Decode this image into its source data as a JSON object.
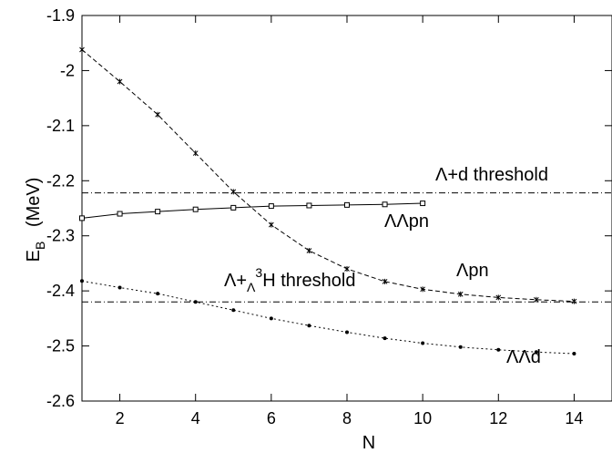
{
  "chart_data": {
    "type": "line",
    "xlabel": "N",
    "ylabel": "E",
    "ylabel_sub": "B",
    "ylabel_unit": "(MeV)",
    "xlim": [
      1,
      15
    ],
    "ylim": [
      -2.6,
      -1.9
    ],
    "xticks": [
      2,
      4,
      6,
      8,
      10,
      12,
      14
    ],
    "yticks": [
      -1.9,
      -2,
      -2.1,
      -2.2,
      -2.3,
      -2.4,
      -2.5,
      -2.6
    ],
    "grid": false,
    "thresholds": [
      {
        "y": -2.222,
        "label": "Λ+d  threshold"
      },
      {
        "y": -2.42,
        "label_pre": "Λ+",
        "label_sub": "Λ",
        "label_sup": "3",
        "label_post": "H  threshold"
      }
    ],
    "series": [
      {
        "name": "ΛΛpn",
        "marker": "square",
        "style": "solid",
        "x": [
          1,
          2,
          3,
          4,
          5,
          6,
          7,
          8,
          9,
          10
        ],
        "y": [
          -2.268,
          -2.26,
          -2.256,
          -2.252,
          -2.249,
          -2.246,
          -2.245,
          -2.244,
          -2.243,
          -2.241
        ]
      },
      {
        "name": "Λpn",
        "marker": "star",
        "style": "dashed",
        "x": [
          1,
          2,
          3,
          4,
          5,
          6,
          7,
          8,
          9,
          10,
          11,
          12,
          13,
          14
        ],
        "y": [
          -1.962,
          -2.02,
          -2.08,
          -2.15,
          -2.22,
          -2.28,
          -2.327,
          -2.36,
          -2.383,
          -2.397,
          -2.406,
          -2.412,
          -2.416,
          -2.419
        ]
      },
      {
        "name": "ΛΛd",
        "marker": "dot",
        "style": "dotted",
        "x": [
          1,
          2,
          3,
          4,
          5,
          6,
          7,
          8,
          9,
          10,
          11,
          12,
          13,
          14
        ],
        "y": [
          -2.382,
          -2.394,
          -2.405,
          -2.42,
          -2.435,
          -2.45,
          -2.463,
          -2.475,
          -2.486,
          -2.495,
          -2.502,
          -2.507,
          -2.511,
          -2.514
        ]
      }
    ]
  }
}
